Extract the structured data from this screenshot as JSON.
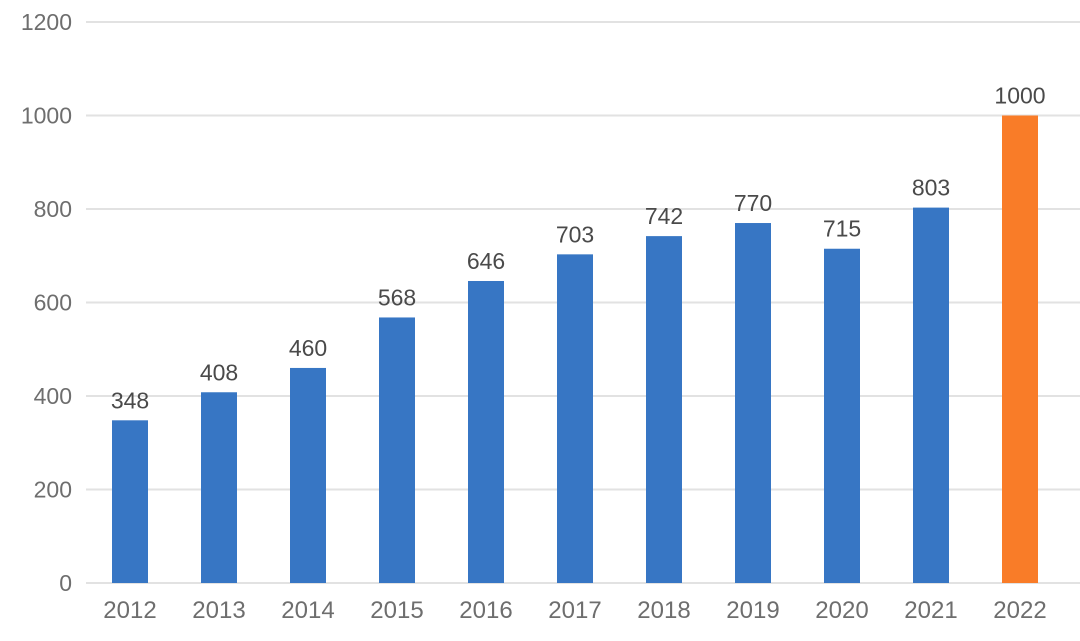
{
  "chart_data": {
    "type": "bar",
    "categories": [
      "2012",
      "2013",
      "2014",
      "2015",
      "2016",
      "2017",
      "2018",
      "2019",
      "2020",
      "2021",
      "2022"
    ],
    "values": [
      348,
      408,
      460,
      568,
      646,
      703,
      742,
      770,
      715,
      803,
      1000
    ],
    "title": "",
    "xlabel": "",
    "ylabel": "",
    "ylim": [
      0,
      1200
    ],
    "ytick_step": 200,
    "ytick_labels": [
      "0",
      "200",
      "400",
      "600",
      "800",
      "1000",
      "1200"
    ],
    "data_labels": [
      "348",
      "408",
      "460",
      "568",
      "646",
      "703",
      "742",
      "770",
      "715",
      "803",
      "1000"
    ],
    "grid": "on",
    "legend": "none",
    "highlight_index": 10,
    "colors": {
      "bar_default": "#3776C4",
      "bar_highlight": "#F97C28",
      "gridline": "#E2E2E2",
      "axis_tick_text": "#6E6E6E",
      "value_label_text": "#4A4A4A",
      "background": "#FFFFFF"
    }
  }
}
